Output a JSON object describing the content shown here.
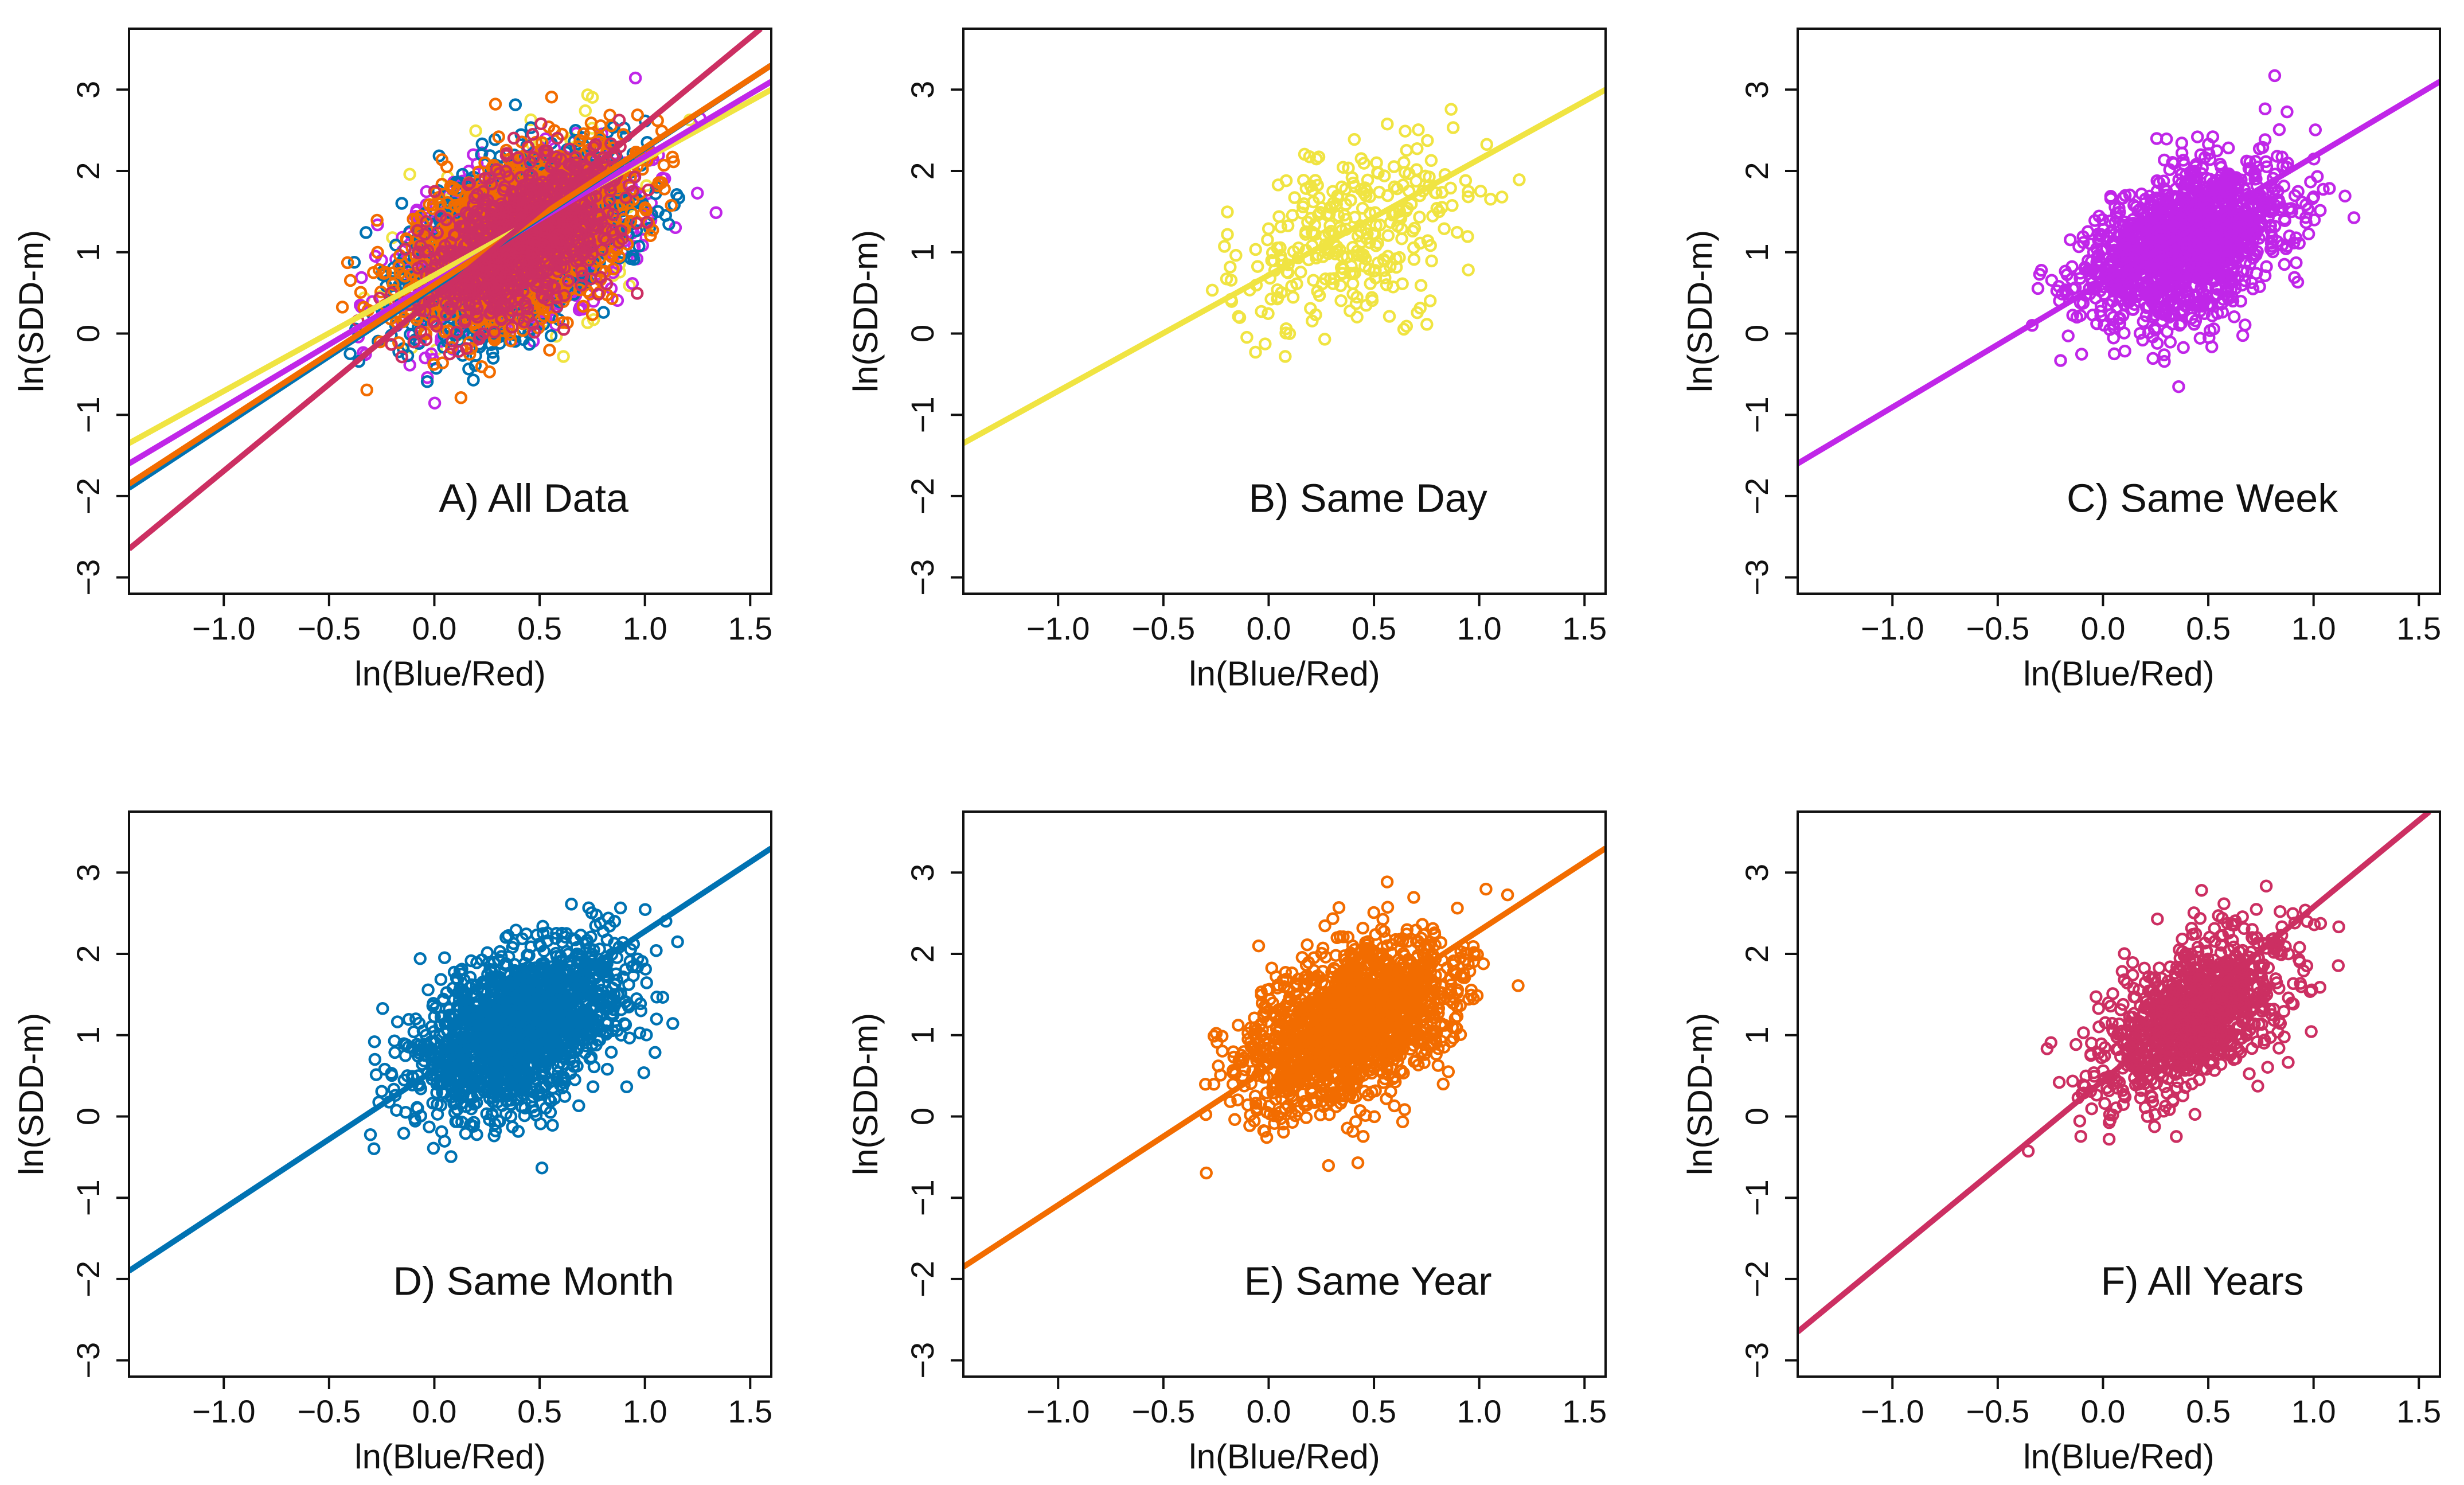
{
  "chart_data": [
    {
      "type": "scatter",
      "title": "A) All Data",
      "xlabel": "ln(Blue/Red)",
      "ylabel": "ln(SDD-m)",
      "xlim": [
        -1.45,
        1.6
      ],
      "ylim": [
        -3.2,
        3.75
      ],
      "xticks": [
        -1.0,
        -0.5,
        0.0,
        0.5,
        1.0,
        1.5
      ],
      "yticks": [
        -3,
        -2,
        -1,
        0,
        1,
        2,
        3
      ],
      "series": [
        {
          "name": "Same Day",
          "color": "#f0e442",
          "center": [
            0.4,
            1.2
          ],
          "spread": [
            0.28,
            0.6
          ],
          "count": 300,
          "line": [
            [
              -1.45,
              -1.35
            ],
            [
              1.6,
              3.0
            ]
          ]
        },
        {
          "name": "Same Week",
          "color": "#c026e8",
          "center": [
            0.4,
            1.1
          ],
          "spread": [
            0.25,
            0.55
          ],
          "count": 1400,
          "line": [
            [
              -1.45,
              -1.6
            ],
            [
              1.6,
              3.1
            ]
          ]
        },
        {
          "name": "Same Month",
          "color": "#0072b2",
          "center": [
            0.4,
            1.1
          ],
          "spread": [
            0.25,
            0.55
          ],
          "count": 1600,
          "line": [
            [
              -1.45,
              -1.9
            ],
            [
              1.6,
              3.3
            ]
          ]
        },
        {
          "name": "Same Year",
          "color": "#f26c00",
          "center": [
            0.4,
            1.15
          ],
          "spread": [
            0.25,
            0.55
          ],
          "count": 1600,
          "line": [
            [
              -1.45,
              -1.85
            ],
            [
              1.6,
              3.3
            ]
          ]
        },
        {
          "name": "All Years",
          "color": "#cc2f62",
          "center": [
            0.42,
            1.2
          ],
          "spread": [
            0.22,
            0.5
          ],
          "count": 1000,
          "line": [
            [
              -1.45,
              -2.65
            ],
            [
              1.55,
              3.75
            ]
          ]
        }
      ]
    },
    {
      "type": "scatter",
      "title": "B) Same Day",
      "xlabel": "ln(Blue/Red)",
      "ylabel": "ln(SDD-m)",
      "xlim": [
        -1.45,
        1.6
      ],
      "ylim": [
        -3.2,
        3.75
      ],
      "xticks": [
        -1.0,
        -0.5,
        0.0,
        0.5,
        1.0,
        1.5
      ],
      "yticks": [
        -3,
        -2,
        -1,
        0,
        1,
        2,
        3
      ],
      "series": [
        {
          "name": "Same Day",
          "color": "#f0e442",
          "center": [
            0.4,
            1.2
          ],
          "spread": [
            0.28,
            0.6
          ],
          "count": 300,
          "line": [
            [
              -1.45,
              -1.35
            ],
            [
              1.6,
              3.0
            ]
          ]
        }
      ]
    },
    {
      "type": "scatter",
      "title": "C) Same Week",
      "xlabel": "ln(Blue/Red)",
      "ylabel": "ln(SDD-m)",
      "xlim": [
        -1.45,
        1.6
      ],
      "ylim": [
        -3.2,
        3.75
      ],
      "xticks": [
        -1.0,
        -0.5,
        0.0,
        0.5,
        1.0,
        1.5
      ],
      "yticks": [
        -3,
        -2,
        -1,
        0,
        1,
        2,
        3
      ],
      "series": [
        {
          "name": "Same Week",
          "color": "#c026e8",
          "center": [
            0.4,
            1.1
          ],
          "spread": [
            0.25,
            0.55
          ],
          "count": 1400,
          "line": [
            [
              -1.45,
              -1.6
            ],
            [
              1.6,
              3.1
            ]
          ]
        }
      ]
    },
    {
      "type": "scatter",
      "title": "D) Same Month",
      "xlabel": "ln(Blue/Red)",
      "ylabel": "ln(SDD-m)",
      "xlim": [
        -1.45,
        1.6
      ],
      "ylim": [
        -3.2,
        3.75
      ],
      "xticks": [
        -1.0,
        -0.5,
        0.0,
        0.5,
        1.0,
        1.5
      ],
      "yticks": [
        -3,
        -2,
        -1,
        0,
        1,
        2,
        3
      ],
      "series": [
        {
          "name": "Same Month",
          "color": "#0072b2",
          "center": [
            0.4,
            1.1
          ],
          "spread": [
            0.25,
            0.55
          ],
          "count": 1600,
          "line": [
            [
              -1.45,
              -1.9
            ],
            [
              1.6,
              3.3
            ]
          ]
        }
      ]
    },
    {
      "type": "scatter",
      "title": "E) Same Year",
      "xlabel": "ln(Blue/Red)",
      "ylabel": "ln(SDD-m)",
      "xlim": [
        -1.45,
        1.6
      ],
      "ylim": [
        -3.2,
        3.75
      ],
      "xticks": [
        -1.0,
        -0.5,
        0.0,
        0.5,
        1.0,
        1.5
      ],
      "yticks": [
        -3,
        -2,
        -1,
        0,
        1,
        2,
        3
      ],
      "series": [
        {
          "name": "Same Year",
          "color": "#f26c00",
          "center": [
            0.4,
            1.15
          ],
          "spread": [
            0.25,
            0.55
          ],
          "count": 1600,
          "line": [
            [
              -1.45,
              -1.85
            ],
            [
              1.6,
              3.3
            ]
          ]
        }
      ]
    },
    {
      "type": "scatter",
      "title": "F) All Years",
      "xlabel": "ln(Blue/Red)",
      "ylabel": "ln(SDD-m)",
      "xlim": [
        -1.45,
        1.6
      ],
      "ylim": [
        -3.2,
        3.75
      ],
      "xticks": [
        -1.0,
        -0.5,
        0.0,
        0.5,
        1.0,
        1.5
      ],
      "yticks": [
        -3,
        -2,
        -1,
        0,
        1,
        2,
        3
      ],
      "series": [
        {
          "name": "All Years",
          "color": "#cc2f62",
          "center": [
            0.42,
            1.2
          ],
          "spread": [
            0.22,
            0.5
          ],
          "count": 1000,
          "line": [
            [
              -1.45,
              -2.65
            ],
            [
              1.55,
              3.75
            ]
          ]
        }
      ]
    }
  ]
}
